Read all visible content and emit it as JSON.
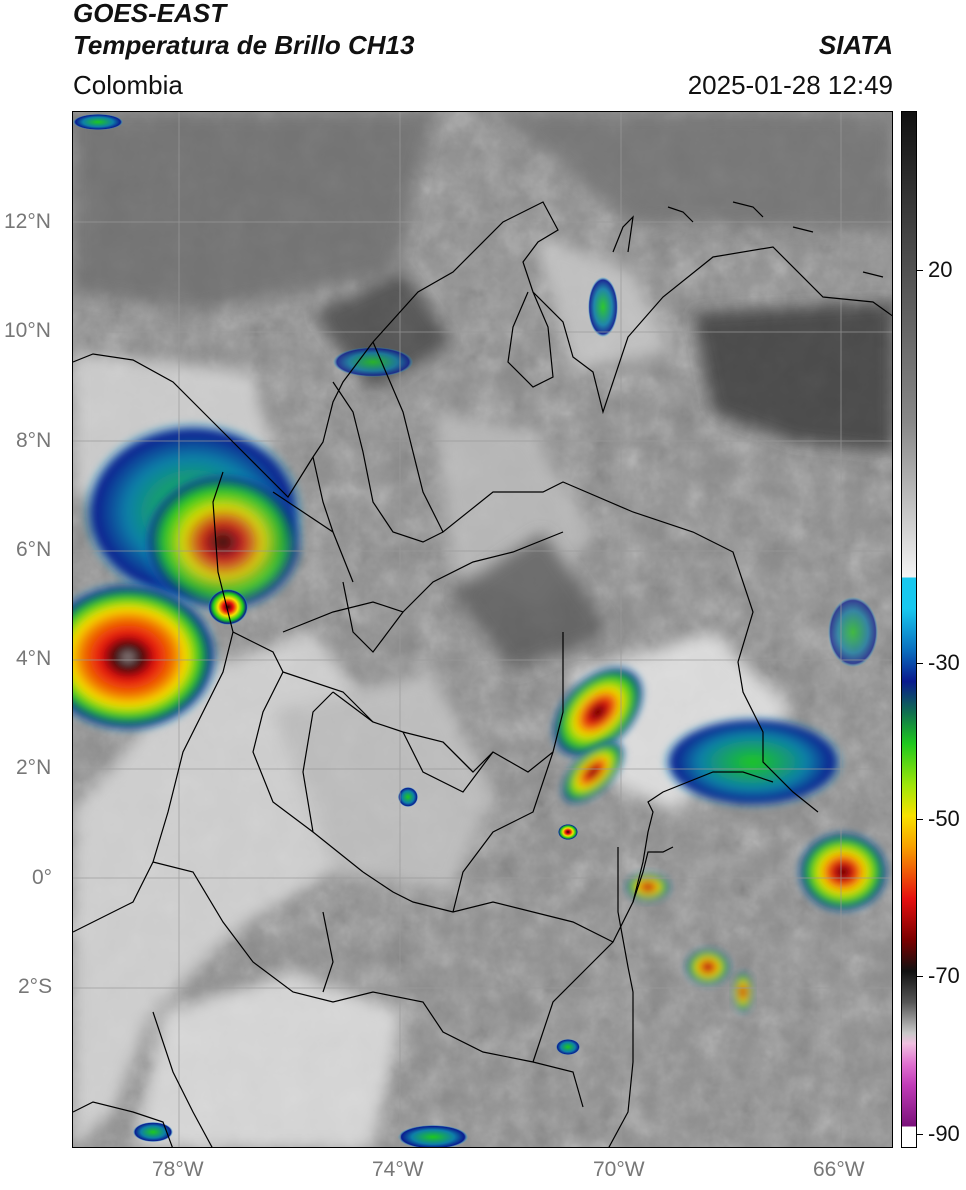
{
  "header": {
    "title_line1": "GOES-EAST",
    "title_line2": "Temperatura de Brillo CH13",
    "brand": "SIATA",
    "region": "Colombia",
    "datetime": "2025-01-28 12:49"
  },
  "map": {
    "lat_labels": [
      "12°N",
      "10°N",
      "8°N",
      "6°N",
      "4°N",
      "2°N",
      "0°",
      "2°S"
    ],
    "lon_labels": [
      "78°W",
      "74°W",
      "70°W",
      "66°W"
    ]
  },
  "colorbar": {
    "tick_labels": [
      "20",
      "-30",
      "-50",
      "-70",
      "-90"
    ],
    "colors": {
      "warm_black": "#111111",
      "gray_mid": "#888888",
      "white": "#f4f4f4",
      "cyan": "#18c8ef",
      "dark_blue": "#0a1a8f",
      "green": "#1ec81e",
      "yellow": "#f8e200",
      "red": "#e61010",
      "dark_red": "#3a0000",
      "magenta": "#c13cb8",
      "purple": "#7a117a"
    }
  }
}
